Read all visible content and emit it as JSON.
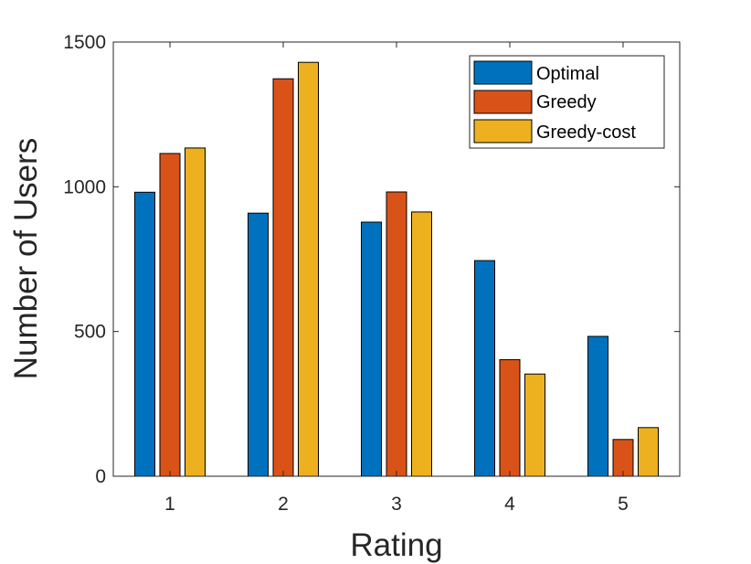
{
  "chart_data": {
    "type": "bar",
    "title": "",
    "xlabel": "Rating",
    "ylabel": "Number of Users",
    "categories": [
      "1",
      "2",
      "3",
      "4",
      "5"
    ],
    "series": [
      {
        "name": "Optimal",
        "color": "#0072BD",
        "values": [
          981,
          909,
          878,
          745,
          483
        ]
      },
      {
        "name": "Greedy",
        "color": "#D95319",
        "values": [
          1115,
          1373,
          982,
          403,
          127
        ]
      },
      {
        "name": "Greedy-cost",
        "color": "#EDB120",
        "values": [
          1134,
          1430,
          913,
          353,
          168
        ]
      }
    ],
    "ylim": [
      0,
      1500
    ],
    "yticks": [
      0,
      500,
      1000,
      1500
    ],
    "ytick_labels": [
      "0",
      "500",
      "1000",
      "1500"
    ],
    "grid": false,
    "legend_position": "top-right"
  }
}
